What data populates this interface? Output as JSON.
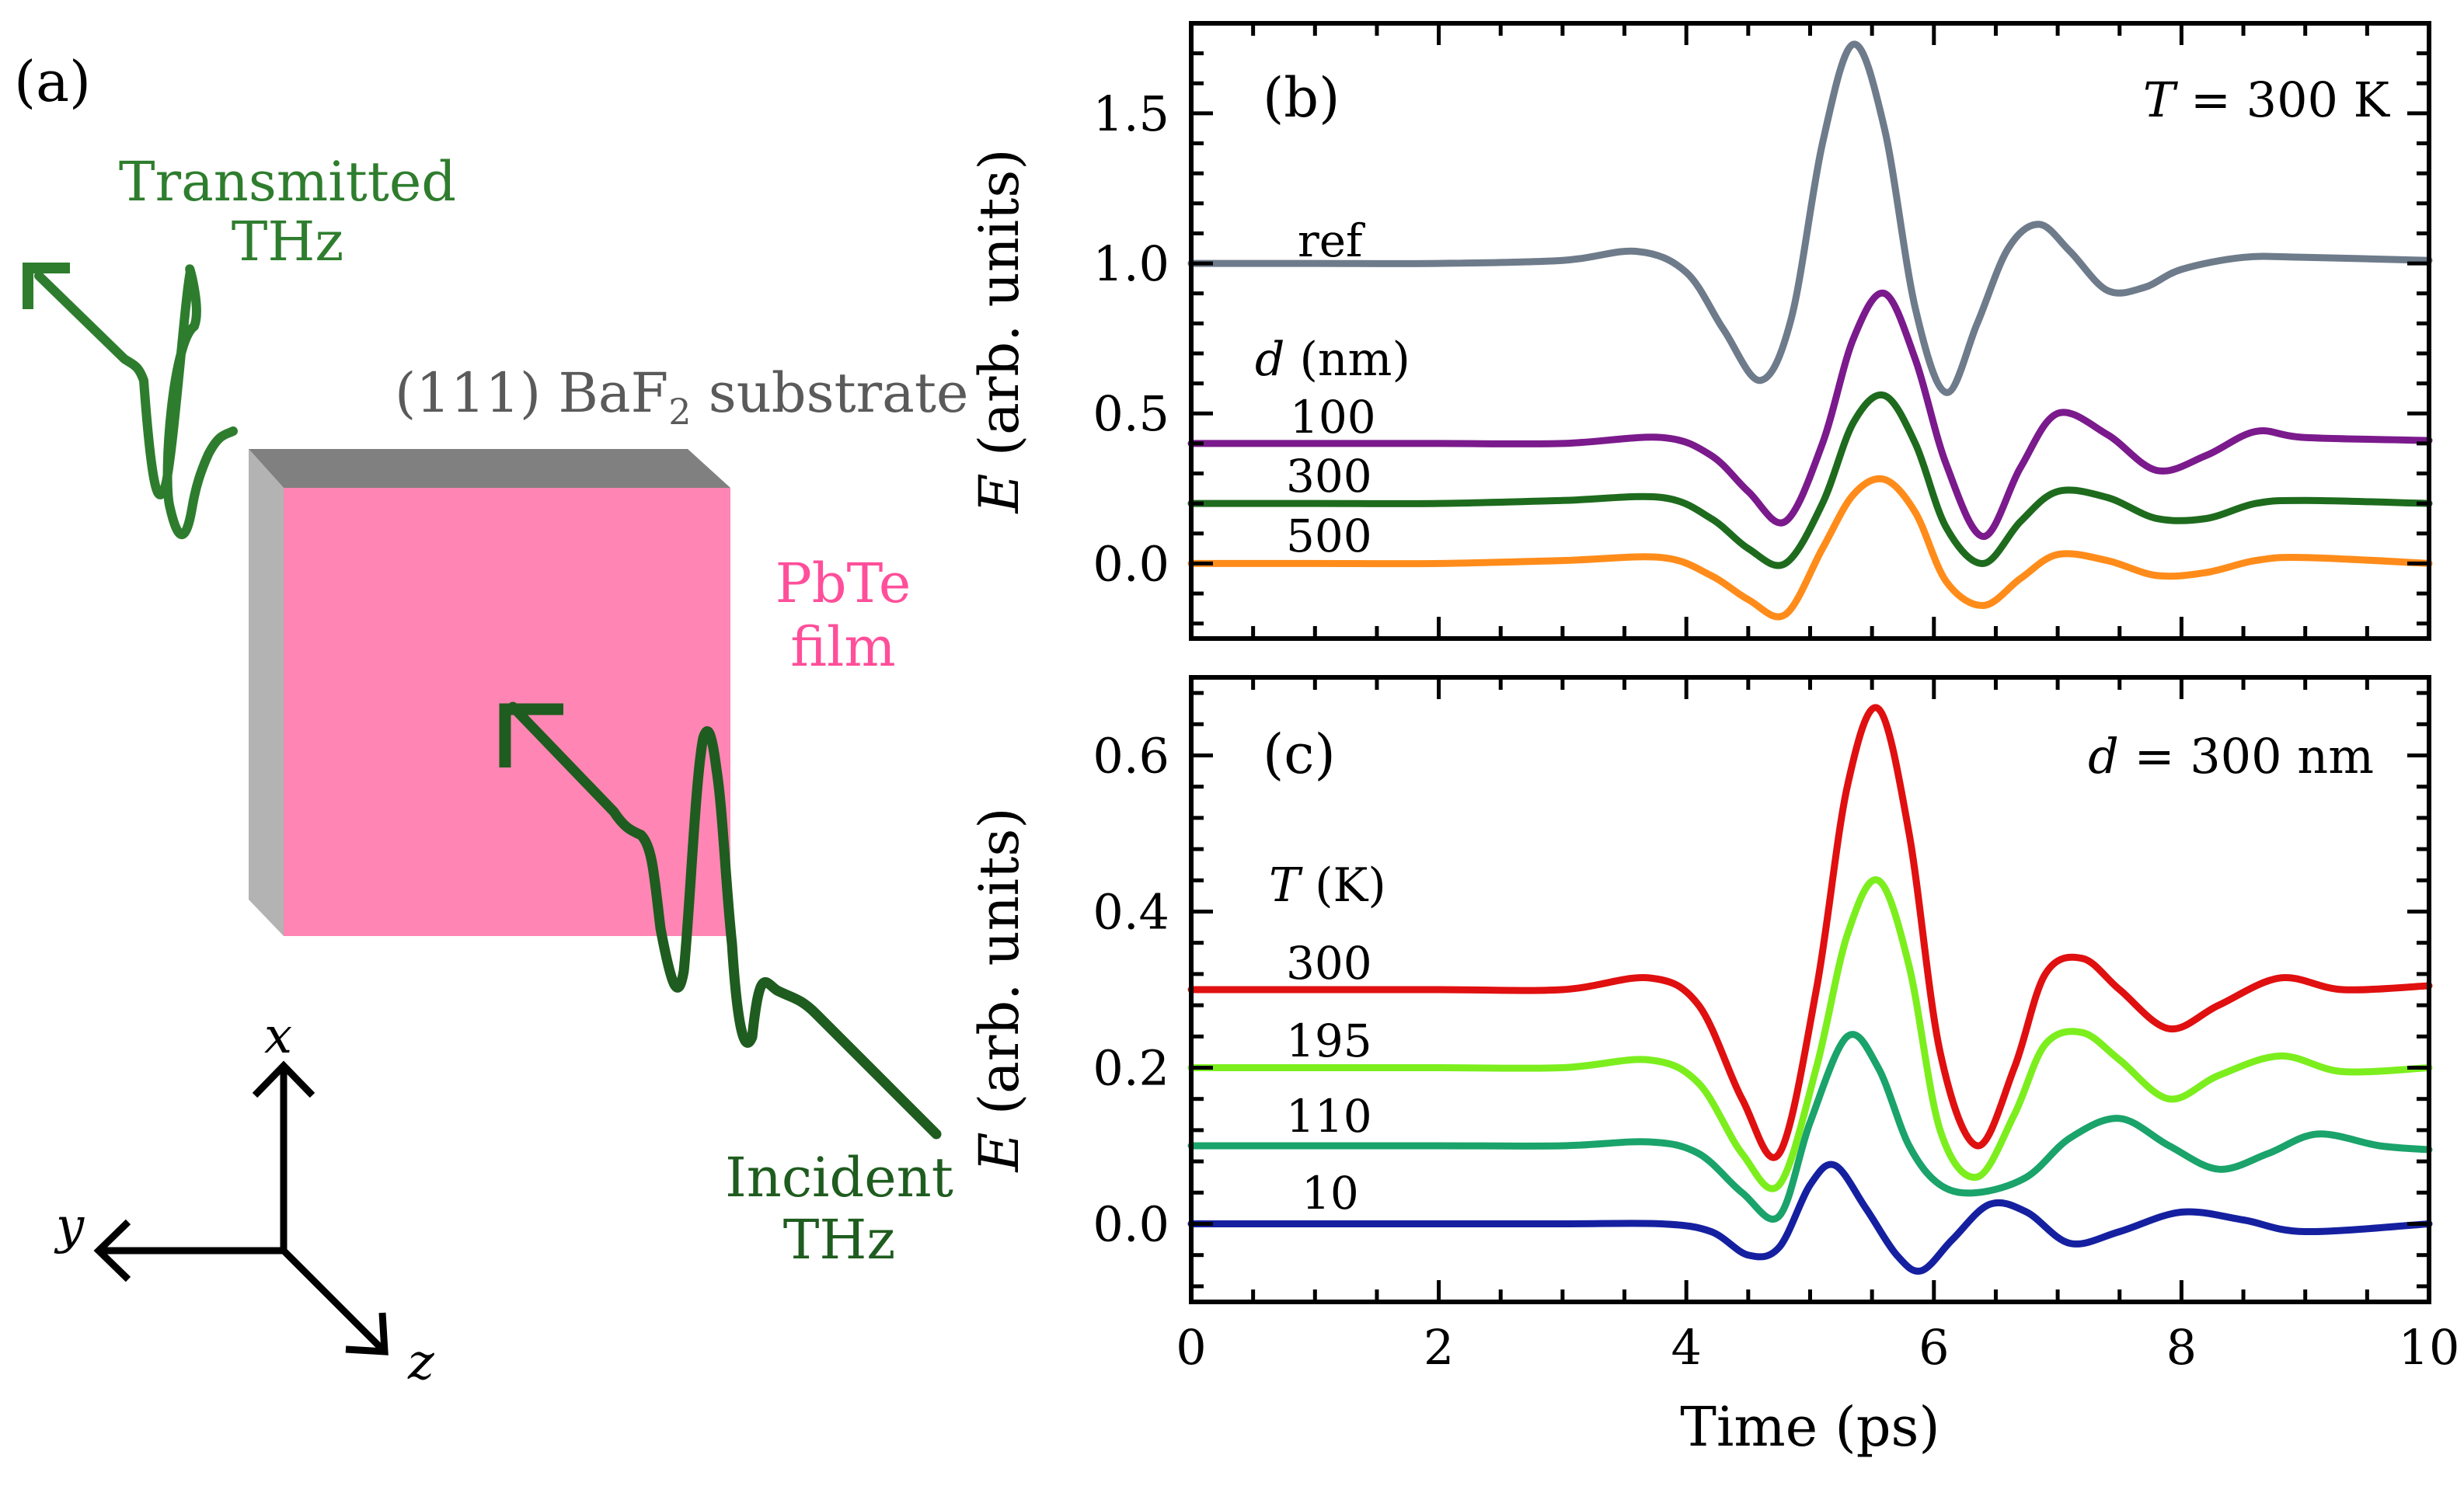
{
  "panel_a": {
    "label": "(a)",
    "transmitted_line1": "Transmitted",
    "transmitted_line2": "THz",
    "substrate_pre": "(111) BaF",
    "substrate_sub": "2",
    "substrate_post": " substrate",
    "film_line1": "PbTe",
    "film_line2": "film",
    "incident_line1": "Incident",
    "incident_line2": "THz",
    "axis_x": "x",
    "axis_y": "y",
    "axis_z": "z",
    "colors": {
      "transmitted": "#2e7d2e",
      "incident": "#1f5c1f",
      "substrate": "#5a5a5a",
      "film_face": "#ff85b4",
      "film_text": "#ff4f9a",
      "side": "#b3b3b3",
      "top": "#808080"
    }
  },
  "chart_data": [
    {
      "panel": "(b)",
      "type": "line",
      "annotation_var": "T",
      "annotation_rest": " = 300 K",
      "ylabel_var": "E",
      "ylabel_rest": " (arb. units)",
      "xlabel": "",
      "xlim": [
        0,
        10
      ],
      "ylim": [
        -0.25,
        1.8
      ],
      "yticks": [
        0.0,
        0.5,
        1.0,
        1.5
      ],
      "ytick_labels": [
        "0.0",
        "0.5",
        "1.0",
        "1.5"
      ],
      "legend_title_var": "d",
      "legend_title_rest": " (nm)",
      "series": [
        {
          "name": "ref",
          "color": "#6e7b8b",
          "x": [
            0,
            1,
            2,
            3,
            3.6,
            4,
            4.3,
            4.6,
            4.85,
            5.1,
            5.35,
            5.6,
            5.85,
            6.1,
            6.35,
            6.6,
            6.85,
            7.1,
            7.4,
            7.7,
            8.0,
            8.5,
            9,
            10
          ],
          "y": [
            1.0,
            1.0,
            1.0,
            1.01,
            1.04,
            0.97,
            0.78,
            0.61,
            0.82,
            1.4,
            1.73,
            1.45,
            0.85,
            0.57,
            0.8,
            1.05,
            1.13,
            1.04,
            0.91,
            0.92,
            0.98,
            1.02,
            1.02,
            1.01
          ]
        },
        {
          "name": "100",
          "color": "#7b1a8c",
          "x": [
            0,
            1,
            2,
            3,
            3.8,
            4.2,
            4.5,
            4.8,
            5.1,
            5.35,
            5.6,
            5.85,
            6.1,
            6.4,
            6.7,
            7.0,
            7.4,
            7.8,
            8.2,
            8.6,
            9,
            10
          ],
          "y": [
            0.4,
            0.4,
            0.4,
            0.4,
            0.42,
            0.36,
            0.24,
            0.14,
            0.4,
            0.75,
            0.9,
            0.68,
            0.33,
            0.09,
            0.32,
            0.5,
            0.43,
            0.31,
            0.36,
            0.44,
            0.42,
            0.41
          ]
        },
        {
          "name": "300",
          "color": "#1e6b1e",
          "x": [
            0,
            1,
            2,
            3,
            3.8,
            4.2,
            4.5,
            4.8,
            5.1,
            5.35,
            5.6,
            5.85,
            6.1,
            6.4,
            6.7,
            7.0,
            7.4,
            7.8,
            8.2,
            8.6,
            9,
            10
          ],
          "y": [
            0.2,
            0.2,
            0.2,
            0.21,
            0.22,
            0.15,
            0.05,
            0.0,
            0.2,
            0.47,
            0.56,
            0.4,
            0.12,
            0.0,
            0.14,
            0.24,
            0.22,
            0.15,
            0.15,
            0.2,
            0.21,
            0.2
          ]
        },
        {
          "name": "500",
          "color": "#ff8c1a",
          "x": [
            0,
            1,
            2,
            3,
            3.8,
            4.2,
            4.5,
            4.8,
            5.1,
            5.35,
            5.6,
            5.85,
            6.1,
            6.4,
            6.7,
            7.0,
            7.4,
            7.8,
            8.2,
            8.6,
            9,
            10
          ],
          "y": [
            0.0,
            0.0,
            0.0,
            0.01,
            0.02,
            -0.04,
            -0.12,
            -0.17,
            0.05,
            0.23,
            0.28,
            0.17,
            -0.06,
            -0.14,
            -0.05,
            0.03,
            0.01,
            -0.04,
            -0.03,
            0.01,
            0.02,
            0.0
          ]
        }
      ]
    },
    {
      "panel": "(c)",
      "type": "line",
      "annotation_var": "d",
      "annotation_rest": " = 300 nm",
      "ylabel_var": "E",
      "ylabel_rest": " (arb. units)",
      "xlabel": "Time (ps)",
      "xlim": [
        0,
        10
      ],
      "ylim": [
        -0.1,
        0.7
      ],
      "xticks": [
        0,
        2,
        4,
        6,
        8,
        10
      ],
      "xtick_labels": [
        "0",
        "2",
        "4",
        "6",
        "8",
        "10"
      ],
      "yticks": [
        0.0,
        0.2,
        0.4,
        0.6
      ],
      "ytick_labels": [
        "0.0",
        "0.2",
        "0.4",
        "0.6"
      ],
      "legend_title_var": "T",
      "legend_title_rest": " (K)",
      "series": [
        {
          "name": "300",
          "color": "#e01010",
          "x": [
            0,
            1,
            2,
            3,
            3.7,
            4.1,
            4.45,
            4.75,
            5.05,
            5.3,
            5.55,
            5.8,
            6.05,
            6.35,
            6.65,
            6.9,
            7.2,
            7.5,
            7.9,
            8.3,
            8.8,
            9.3,
            10
          ],
          "y": [
            0.3,
            0.3,
            0.3,
            0.3,
            0.315,
            0.28,
            0.16,
            0.09,
            0.3,
            0.56,
            0.66,
            0.5,
            0.22,
            0.1,
            0.2,
            0.32,
            0.34,
            0.3,
            0.25,
            0.28,
            0.315,
            0.3,
            0.305
          ]
        },
        {
          "name": "195",
          "color": "#7cee1e",
          "x": [
            0,
            1,
            2,
            3,
            3.7,
            4.1,
            4.45,
            4.75,
            5.05,
            5.3,
            5.55,
            5.8,
            6.05,
            6.35,
            6.65,
            6.9,
            7.2,
            7.5,
            7.9,
            8.3,
            8.8,
            9.3,
            10
          ],
          "y": [
            0.2,
            0.2,
            0.2,
            0.2,
            0.21,
            0.18,
            0.09,
            0.05,
            0.2,
            0.37,
            0.44,
            0.33,
            0.12,
            0.06,
            0.14,
            0.23,
            0.245,
            0.21,
            0.16,
            0.19,
            0.215,
            0.195,
            0.2
          ]
        },
        {
          "name": "110",
          "color": "#1aa36a",
          "x": [
            0,
            1,
            2,
            3,
            3.7,
            4.1,
            4.45,
            4.75,
            5.0,
            5.3,
            5.55,
            5.8,
            6.05,
            6.35,
            6.75,
            7.1,
            7.5,
            7.9,
            8.3,
            8.7,
            9.1,
            9.6,
            10
          ],
          "y": [
            0.1,
            0.1,
            0.1,
            0.1,
            0.105,
            0.09,
            0.04,
            0.01,
            0.13,
            0.24,
            0.2,
            0.1,
            0.05,
            0.04,
            0.06,
            0.11,
            0.135,
            0.1,
            0.07,
            0.09,
            0.115,
            0.1,
            0.095
          ]
        },
        {
          "name": "10",
          "color": "#1520a0",
          "x": [
            0,
            1,
            2,
            3,
            3.8,
            4.2,
            4.5,
            4.75,
            5.0,
            5.2,
            5.45,
            5.7,
            5.9,
            6.15,
            6.45,
            6.75,
            7.1,
            7.5,
            8.0,
            8.5,
            9,
            10
          ],
          "y": [
            0.0,
            0.0,
            0.0,
            0.0,
            0.0,
            -0.01,
            -0.04,
            -0.03,
            0.05,
            0.075,
            0.02,
            -0.04,
            -0.06,
            -0.02,
            0.025,
            0.015,
            -0.025,
            -0.01,
            0.015,
            0.005,
            -0.01,
            0.0
          ]
        }
      ]
    }
  ]
}
